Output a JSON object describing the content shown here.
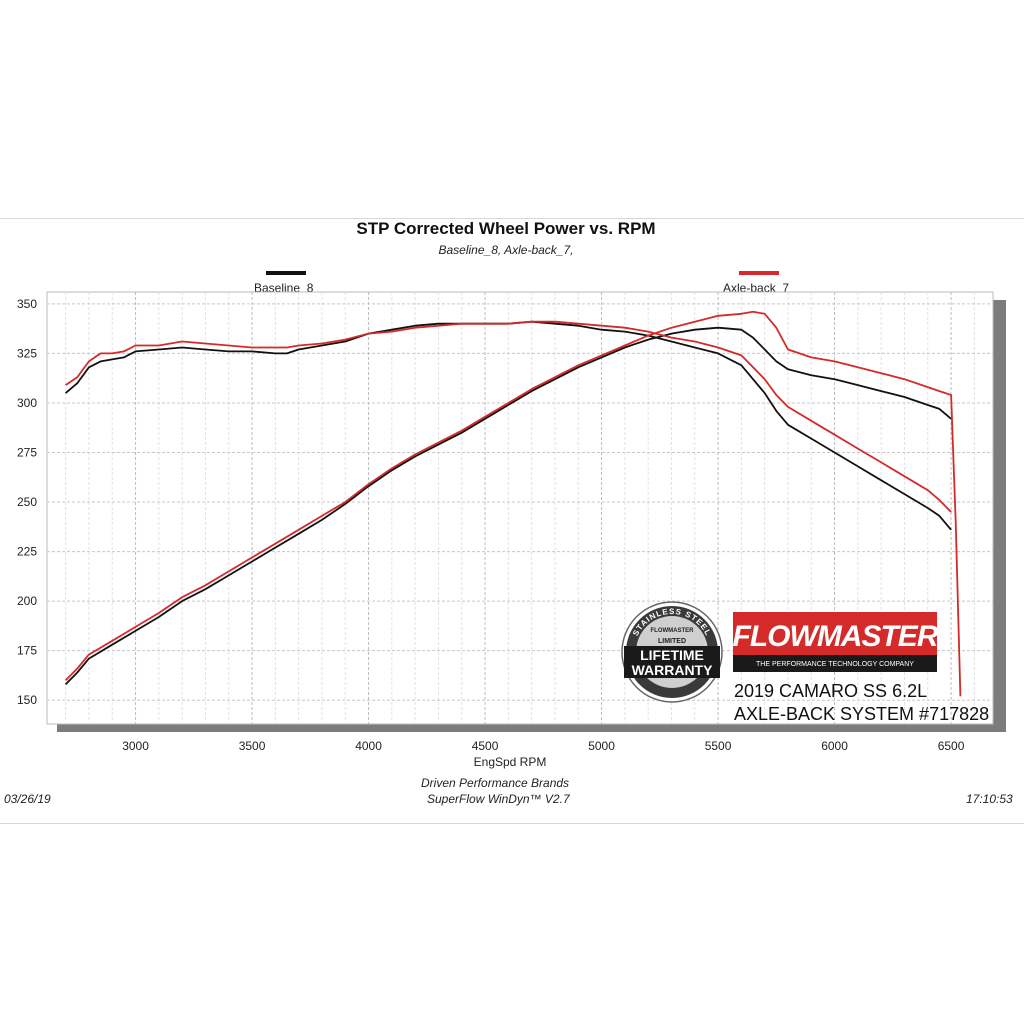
{
  "chart_data": {
    "type": "line",
    "title": "STP Corrected Wheel Power vs. RPM",
    "subtitle": "Baseline_8, Axle-back_7,",
    "xlabel": "EngSpd  RPM",
    "ylabel": "",
    "xlim": [
      2620,
      6680
    ],
    "ylim": [
      138,
      356
    ],
    "x_ticks": [
      3000,
      3500,
      4000,
      4500,
      5000,
      5500,
      6000,
      6500
    ],
    "y_ticks": [
      150,
      175,
      200,
      225,
      250,
      275,
      300,
      325,
      350
    ],
    "grid": true,
    "legend_position": "top",
    "series": [
      {
        "name": "Baseline_8",
        "color": "#111111",
        "curves": [
          {
            "x": [
              2700,
              2750,
              2800,
              2850,
              2900,
              2950,
              3000,
              3100,
              3200,
              3300,
              3400,
              3500,
              3600,
              3650,
              3700,
              3800,
              3900,
              4000,
              4100,
              4200,
              4300,
              4400,
              4500,
              4600,
              4700,
              4800,
              4900,
              5000,
              5100,
              5200,
              5300,
              5400,
              5500,
              5600,
              5700,
              5750,
              5800,
              5900,
              6000,
              6100,
              6200,
              6300,
              6400,
              6450,
              6500
            ],
            "y": [
              305,
              310,
              318,
              321,
              322,
              323,
              326,
              327,
              328,
              327,
              326,
              326,
              325,
              325,
              327,
              329,
              331,
              335,
              337,
              339,
              340,
              340,
              340,
              340,
              341,
              340,
              339,
              337,
              336,
              334,
              331,
              328,
              325,
              319,
              305,
              296,
              289,
              282,
              275,
              268,
              261,
              254,
              247,
              243,
              236
            ]
          },
          {
            "x": [
              2700,
              2750,
              2800,
              2900,
              3000,
              3100,
              3200,
              3300,
              3400,
              3500,
              3600,
              3700,
              3800,
              3900,
              4000,
              4100,
              4200,
              4300,
              4400,
              4500,
              4600,
              4700,
              4800,
              4900,
              5000,
              5100,
              5200,
              5300,
              5400,
              5500,
              5600,
              5650,
              5700,
              5750,
              5800,
              5900,
              6000,
              6100,
              6200,
              6300,
              6400,
              6450,
              6500
            ],
            "y": [
              158,
              164,
              171,
              178,
              185,
              192,
              200,
              206,
              213,
              220,
              227,
              234,
              241,
              249,
              258,
              266,
              273,
              279,
              285,
              292,
              299,
              306,
              312,
              318,
              323,
              328,
              332,
              335,
              337,
              338,
              337,
              333,
              327,
              321,
              317,
              314,
              312,
              309,
              306,
              303,
              299,
              297,
              292
            ]
          }
        ]
      },
      {
        "name": "Axle-back_7",
        "color": "#d42a2a",
        "curves": [
          {
            "x": [
              2700,
              2750,
              2800,
              2850,
              2900,
              2950,
              3000,
              3100,
              3200,
              3300,
              3400,
              3500,
              3600,
              3650,
              3700,
              3800,
              3900,
              4000,
              4100,
              4200,
              4300,
              4400,
              4500,
              4600,
              4700,
              4800,
              4900,
              5000,
              5100,
              5200,
              5300,
              5400,
              5500,
              5600,
              5700,
              5750,
              5800,
              5900,
              6000,
              6100,
              6200,
              6300,
              6400,
              6450,
              6500
            ],
            "y": [
              309,
              313,
              321,
              325,
              325,
              326,
              329,
              329,
              331,
              330,
              329,
              328,
              328,
              328,
              329,
              330,
              332,
              335,
              336,
              338,
              339,
              340,
              340,
              340,
              341,
              341,
              340,
              339,
              338,
              336,
              333,
              331,
              328,
              324,
              312,
              304,
              298,
              291,
              284,
              277,
              270,
              263,
              256,
              251,
              245
            ]
          },
          {
            "x": [
              2700,
              2750,
              2800,
              2900,
              3000,
              3100,
              3200,
              3300,
              3400,
              3500,
              3600,
              3700,
              3800,
              3900,
              4000,
              4100,
              4200,
              4300,
              4400,
              4500,
              4600,
              4700,
              4800,
              4900,
              5000,
              5100,
              5200,
              5300,
              5400,
              5500,
              5600,
              5650,
              5700,
              5750,
              5800,
              5900,
              6000,
              6100,
              6200,
              6300,
              6400,
              6450,
              6500,
              6520,
              6540
            ],
            "y": [
              160,
              166,
              173,
              180,
              187,
              194,
              202,
              208,
              215,
              222,
              229,
              236,
              243,
              250,
              259,
              267,
              274,
              280,
              286,
              293,
              300,
              307,
              313,
              319,
              324,
              329,
              334,
              338,
              341,
              344,
              345,
              346,
              345,
              338,
              327,
              323,
              321,
              318,
              315,
              312,
              308,
              306,
              304,
              240,
              152
            ]
          }
        ]
      }
    ]
  },
  "legend": {
    "baseline_label": "Baseline_8",
    "axleback_label": "Axle-back_7"
  },
  "badge": {
    "arc_text": "STAINLESS STEEL",
    "brand_small": "FLOWMASTER",
    "limited": "LIMITED",
    "line1": "LIFETIME",
    "line2": "WARRANTY"
  },
  "brand": {
    "logo": "FLOWMASTER",
    "tagline": "THE PERFORMANCE TECHNOLOGY COMPANY",
    "red": "#d42a2a"
  },
  "product": {
    "line1": "2019 CAMARO SS 6.2L",
    "line2": "AXLE-BACK SYSTEM #717828"
  },
  "footer": {
    "date": "03/26/19",
    "company": "Driven Performance Brands",
    "software": "SuperFlow WinDyn™  V2.7",
    "time": "17:10:53"
  }
}
